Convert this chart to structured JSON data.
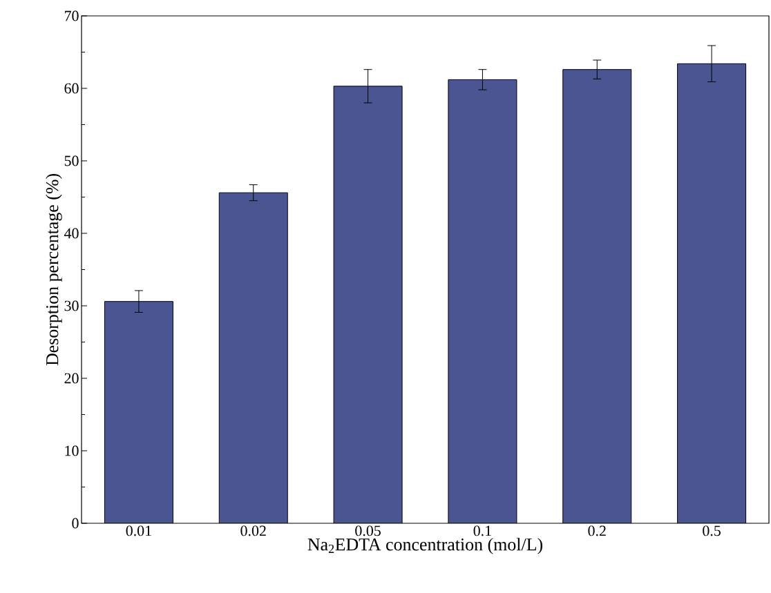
{
  "chart_data": {
    "type": "bar",
    "xlabel": "Na$_{2}$EDTA concentration (mol/L)",
    "ylabel": "Desorption percentage (%)",
    "categories": [
      "0.01",
      "0.02",
      "0.05",
      "0.1",
      "0.2",
      "0.5"
    ],
    "values": [
      30.6,
      45.6,
      60.3,
      61.2,
      62.6,
      63.4
    ],
    "errors": [
      1.5,
      1.1,
      2.3,
      1.4,
      1.3,
      2.5
    ],
    "color": "#4b5591",
    "ylim": [
      0,
      70
    ],
    "yticks": [
      0,
      10,
      20,
      30,
      40,
      50,
      60,
      70
    ],
    "grid": false
  }
}
